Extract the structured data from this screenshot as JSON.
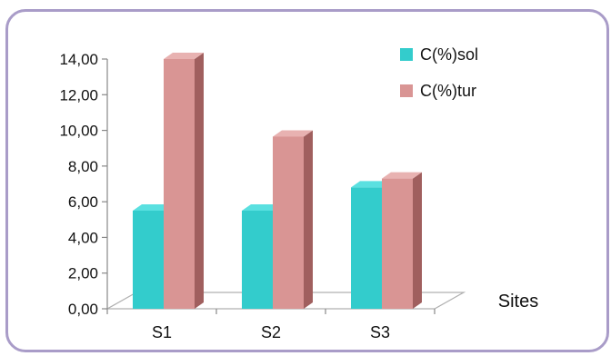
{
  "chart_data": {
    "type": "bar",
    "categories": [
      "S1",
      "S2",
      "S3"
    ],
    "series": [
      {
        "name": "C(%)sol",
        "values": [
          5.5,
          5.5,
          6.8
        ]
      },
      {
        "name": "C(%)tur",
        "values": [
          14.0,
          9.65,
          7.3
        ]
      }
    ],
    "xlabel": "Sites",
    "ylabel": "",
    "title": "",
    "ylim": [
      0,
      14
    ],
    "y_ticks": [
      "0,00",
      "2,00",
      "4,00",
      "6,00",
      "8,00",
      "10,00",
      "12,00",
      "14,00"
    ],
    "legend_position": "top-right",
    "grid": false,
    "style": "3d-column"
  },
  "colors": {
    "series_front": [
      "#33cccc",
      "#d99594"
    ],
    "series_side": [
      "#1f8f8f",
      "#a05f5e"
    ],
    "series_top": [
      "#5ae0e0",
      "#e8b2b1"
    ],
    "frame_border": "#a99cc8"
  }
}
